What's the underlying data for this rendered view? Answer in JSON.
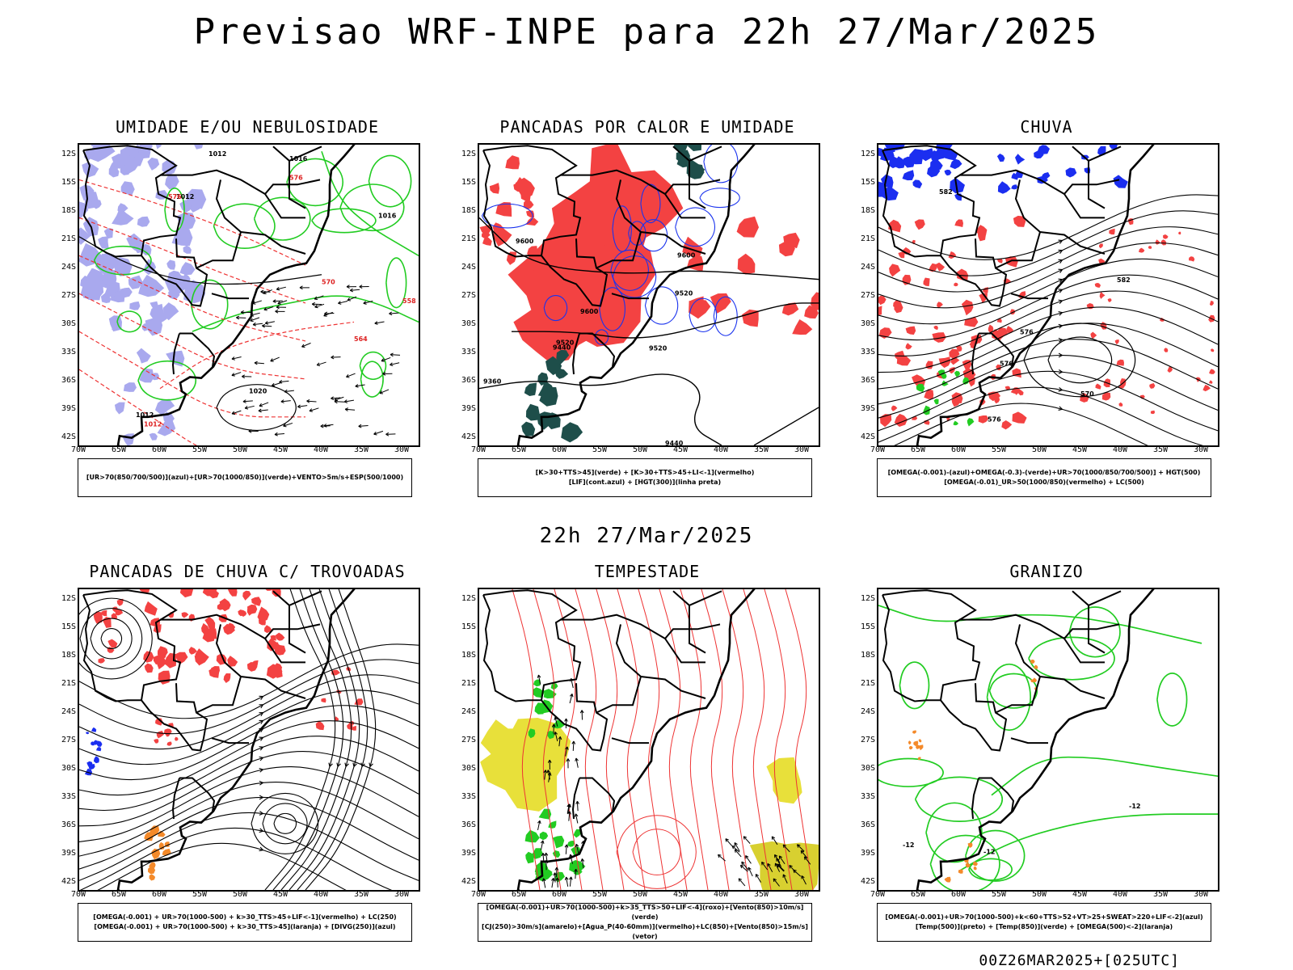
{
  "header": {
    "title": "Previsao WRF-INPE  para 22h 27/Mar/2025"
  },
  "subheader": {
    "time": "22h 27/Mar/2025"
  },
  "footer": {
    "run": "00Z26MAR2025+[025UTC]"
  },
  "axes": {
    "lat_labels": [
      "12S",
      "15S",
      "18S",
      "21S",
      "24S",
      "27S",
      "30S",
      "33S",
      "36S",
      "39S",
      "42S"
    ],
    "lon_labels": [
      "70W",
      "65W",
      "60W",
      "55W",
      "50W",
      "45W",
      "40W",
      "35W",
      "30W"
    ]
  },
  "panels": [
    {
      "id": "umidade",
      "title": "UMIDADE E/OU NEBULOSIDADE",
      "legend": [
        "[UR>70(850/700/500)](azul)+[UR>70(1000/850)](verde)+VENTO>5m/s+ESP(500/1000)"
      ],
      "contour_labels": [
        "1012",
        "1012",
        "1016",
        "1016",
        "1020",
        "1012",
        "1012",
        "576",
        "576",
        "570",
        "564",
        "558"
      ]
    },
    {
      "id": "pancadas-calor",
      "title": "PANCADAS POR CALOR E UMIDADE",
      "legend": [
        "[K>30+TTS>45](verde) + [K>30+TTS>45+LI<-1](vermelho)",
        "[LIF](cont.azul) + [HGT(300)](linha preta)"
      ],
      "contour_labels": [
        "9600",
        "9600",
        "9600",
        "9520",
        "9520",
        "9440",
        "9360",
        "9520",
        "9440"
      ]
    },
    {
      "id": "chuva",
      "title": "CHUVA",
      "legend": [
        "[OMEGA(-0.001)-(azul)+OMEGA(-0.3)-(verde)+UR>70(1000/850/700/500)] + HGT(500)",
        "[OMEGA(-0.01)_UR>50(1000/850)(vermelho) + LC(500)"
      ],
      "contour_labels": [
        "582",
        "582",
        "576",
        "576",
        "570",
        "576"
      ]
    },
    {
      "id": "pancadas-trovoadas",
      "title": "PANCADAS DE CHUVA C/ TROVOADAS",
      "legend": [
        "[OMEGA(-0.001) + UR>70(1000-500) + k>30_TTS>45+LIF<-1](vermelho) + LC(250)",
        "[OMEGA(-0.001) + UR>70(1000-500) + k>30_TTS>45](laranja) + [DIVG(250)](azul)"
      ],
      "contour_labels": []
    },
    {
      "id": "tempestade",
      "title": "TEMPESTADE",
      "legend": [
        "[OMEGA(-0.001)+UR>70(1000-500)+k>35_TTS>50+LIF<-4](roxo)+[Vento(850)>10m/s](verde)",
        "[CJ(250)>30m/s](amarelo)+[Agua_P(40-60mm)](vermelho)+LC(850)+[Vento(850)>15m/s](vetor)"
      ],
      "contour_labels": []
    },
    {
      "id": "granizo",
      "title": "GRANIZO",
      "legend": [
        "[OMEGA(-0.001)+UR>70(1000-500)+k<60+TTS>52+VT>25+SWEAT>220+LIF<-2](azul)",
        "[Temp(500)](preto) + [Temp(850)](verde) + [OMEGA(500)<-2](laranja)"
      ],
      "contour_labels": [
        "-12",
        "-12",
        "-12"
      ]
    }
  ]
}
